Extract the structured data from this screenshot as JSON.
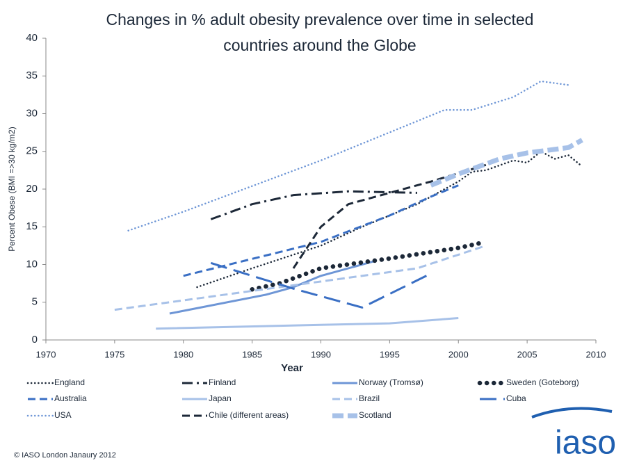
{
  "chart_data": {
    "type": "line",
    "title": "Changes in % adult obesity prevalence over time in selected countries around the Globe",
    "x_label": "Year",
    "y_label": "Percent Obese (BMI =>30 kg/m2)",
    "xlim": [
      1970,
      2010
    ],
    "xticks": [
      1970,
      1975,
      1980,
      1985,
      1990,
      1995,
      2000,
      2005,
      2010
    ],
    "ylim": [
      0,
      40
    ],
    "yticks": [
      0,
      5,
      10,
      15,
      20,
      25,
      30,
      35,
      40
    ],
    "grid": false,
    "series": [
      {
        "name": "England",
        "color": "#1c2838",
        "dash": "dot",
        "x": [
          1981,
          1985,
          1990,
          1993,
          1997,
          2000,
          2001,
          2002,
          2004,
          2005,
          2006,
          2007,
          2008,
          2009
        ],
        "values": [
          7,
          9.5,
          12.5,
          15,
          18,
          21,
          22.3,
          22.5,
          23.8,
          23.5,
          25,
          24,
          24.5,
          23
        ]
      },
      {
        "name": "Finland",
        "color": "#1c2838",
        "dash": "dashdot",
        "x": [
          1982,
          1985,
          1988,
          1992,
          1997
        ],
        "values": [
          16,
          18,
          19.2,
          19.7,
          19.5
        ]
      },
      {
        "name": "Norway (Tromsø)",
        "color": "#6e96d6",
        "dash": "solid",
        "x": [
          1979,
          1986,
          1988,
          1990,
          1994
        ],
        "values": [
          3.5,
          6,
          7,
          8.5,
          10.5
        ]
      },
      {
        "name": "Sweden (Goteborg)",
        "color": "#1c2838",
        "dash": "bigdot",
        "x": [
          1985,
          1987,
          1990,
          1995,
          2000,
          2001.5
        ],
        "values": [
          6.7,
          7.5,
          9.5,
          10.8,
          12.2,
          12.8
        ]
      },
      {
        "name": "Australia",
        "color": "#3a6fc4",
        "dash": "dash",
        "x": [
          1980,
          1990,
          1995,
          1998,
          2000
        ],
        "values": [
          8.5,
          13,
          16.5,
          19,
          20.5
        ]
      },
      {
        "name": "Japan",
        "color": "#a7c1e8",
        "dash": "solid",
        "x": [
          1978,
          1990,
          1995,
          2000
        ],
        "values": [
          1.5,
          2,
          2.2,
          2.9
        ]
      },
      {
        "name": "Brazil",
        "color": "#a7c1e8",
        "dash": "dash",
        "x": [
          1975,
          1989,
          1997,
          2002
        ],
        "values": [
          4,
          7.5,
          9.5,
          12.5
        ]
      },
      {
        "name": "Cuba",
        "color": "#3a6fc4",
        "dash": "longdash",
        "x": [
          1982,
          1988,
          1993,
          1998
        ],
        "values": [
          10.2,
          6.8,
          4.3,
          8.8
        ]
      },
      {
        "name": "USA",
        "color": "#6e96d6",
        "dash": "dot",
        "x": [
          1976,
          1980,
          1990,
          1999,
          2001,
          2004,
          2006,
          2008
        ],
        "values": [
          14.5,
          17,
          23.8,
          30.5,
          30.5,
          32.2,
          34.3,
          33.8
        ]
      },
      {
        "name": "Chile (different areas)",
        "color": "#1c2838",
        "dash": "dash",
        "x": [
          1988,
          1990,
          1992,
          1994,
          1998,
          2002
        ],
        "values": [
          9.5,
          15,
          18,
          19,
          21,
          23.2
        ]
      },
      {
        "name": "Scotland",
        "color": "#a7c1e8",
        "dash": "thickdash",
        "x": [
          1998,
          2000,
          2003,
          2005,
          2008,
          2009
        ],
        "values": [
          20.5,
          22,
          24,
          24.8,
          25.5,
          26.5
        ]
      }
    ]
  },
  "footer": "© IASO London  Janaury 2012",
  "logo": "iaso"
}
